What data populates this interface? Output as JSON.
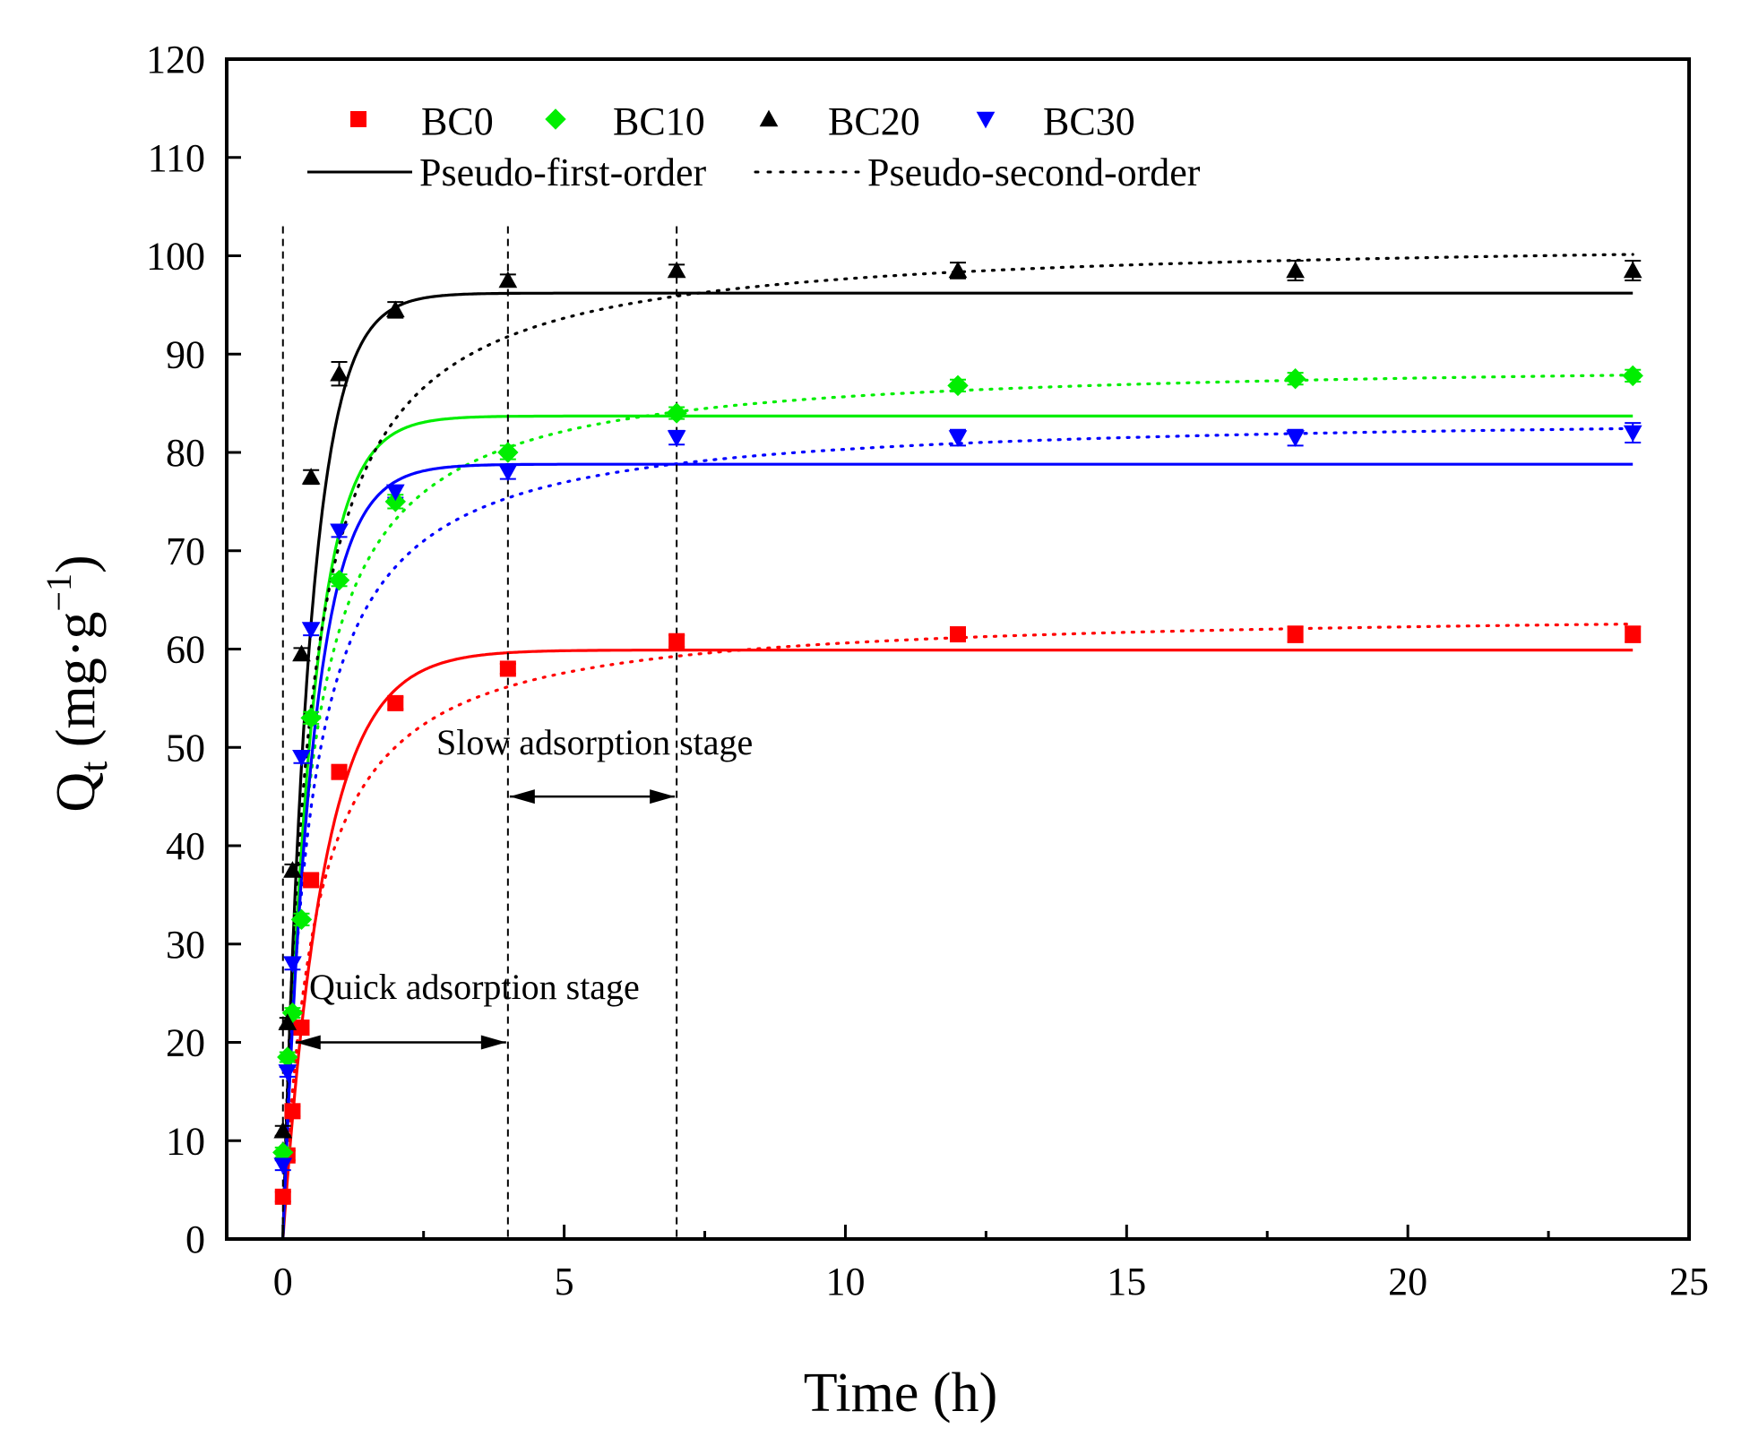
{
  "chart_data": {
    "type": "scatter",
    "xlabel": "Time (h)",
    "ylabel_main": "Q",
    "ylabel_sub": "t",
    "ylabel_rest": " (mg·g",
    "ylabel_sup": "−1",
    "ylabel_close": ")",
    "xlim": [
      -1,
      25
    ],
    "ylim": [
      0,
      120
    ],
    "x_ticks": [
      0,
      5,
      10,
      15,
      20,
      25
    ],
    "y_ticks": [
      0,
      10,
      20,
      30,
      40,
      50,
      60,
      70,
      80,
      90,
      100,
      110,
      120
    ],
    "grid": false,
    "legend_position": "top-left",
    "legend": {
      "fit_first_label": "Pseudo-first-order",
      "fit_second_label": "Pseudo-second-order"
    },
    "series": [
      {
        "name": "BC0",
        "color": "#ff0000",
        "marker": "square",
        "x": [
          0,
          0.08,
          0.17,
          0.33,
          0.5,
          1,
          2,
          4,
          7,
          12,
          18,
          24
        ],
        "y": [
          4.3,
          8.5,
          13.0,
          21.5,
          36.5,
          47.5,
          54.5,
          58.0,
          60.8,
          61.5,
          61.5,
          61.5
        ],
        "err": [
          0.5,
          0.5,
          0.5,
          0.6,
          0.6,
          0.6,
          0.6,
          0.5,
          0.6,
          0.6,
          0.8,
          0.8
        ],
        "pfo": {
          "qe": 59.9,
          "k1": 1.35
        },
        "pso": {
          "qe": 64.0,
          "k2": 0.028
        }
      },
      {
        "name": "BC10",
        "color": "#00ee00",
        "marker": "diamond",
        "x": [
          0,
          0.08,
          0.17,
          0.33,
          0.5,
          1,
          2,
          4,
          7,
          12,
          18,
          24
        ],
        "y": [
          8.8,
          18.5,
          23.0,
          32.5,
          53.0,
          67.0,
          75.0,
          80.0,
          84.0,
          86.8,
          87.5,
          87.8
        ],
        "err": [
          0.5,
          0.5,
          0.5,
          0.6,
          0.6,
          0.6,
          0.7,
          0.7,
          0.6,
          0.6,
          0.6,
          0.6
        ],
        "pfo": {
          "qe": 83.7,
          "k1": 1.95
        },
        "pso": {
          "qe": 89.5,
          "k2": 0.025
        }
      },
      {
        "name": "BC20",
        "color": "#000000",
        "marker": "triangle-up",
        "x": [
          0,
          0.08,
          0.17,
          0.33,
          0.5,
          1,
          2,
          4,
          7,
          12,
          18,
          24
        ],
        "y": [
          11.0,
          22.0,
          37.5,
          59.5,
          77.5,
          88.0,
          94.5,
          97.5,
          98.5,
          98.5,
          98.5,
          98.5
        ],
        "err": [
          0.5,
          0.5,
          0.6,
          0.6,
          0.7,
          1.2,
          0.8,
          0.6,
          0.6,
          0.8,
          1.0,
          1.0
        ],
        "pfo": {
          "qe": 96.2,
          "k1": 2.1
        },
        "pso": {
          "qe": 102.0,
          "k2": 0.022
        }
      },
      {
        "name": "BC30",
        "color": "#0000ff",
        "marker": "triangle-down",
        "x": [
          0,
          0.08,
          0.17,
          0.33,
          0.5,
          1,
          2,
          4,
          7,
          12,
          18,
          24
        ],
        "y": [
          7.5,
          17.0,
          28.0,
          49.0,
          62.0,
          72.0,
          76.0,
          78.0,
          81.5,
          81.5,
          81.5,
          82.0
        ],
        "err": [
          0.5,
          0.5,
          0.6,
          0.6,
          0.6,
          0.6,
          0.6,
          0.7,
          0.7,
          0.8,
          0.8,
          1.0
        ],
        "pfo": {
          "qe": 78.8,
          "k1": 1.9
        },
        "pso": {
          "qe": 84.0,
          "k2": 0.026
        }
      }
    ],
    "annotations": {
      "quick_label": "Quick adsorption stage",
      "slow_label": "Slow adsorption stage",
      "quick_range": [
        0,
        4
      ],
      "slow_range": [
        4,
        7
      ],
      "quick_arrow_y": 20,
      "slow_arrow_y": 45,
      "dashed_lines_x": [
        0,
        4,
        7
      ],
      "dashed_top_y": 103
    }
  }
}
